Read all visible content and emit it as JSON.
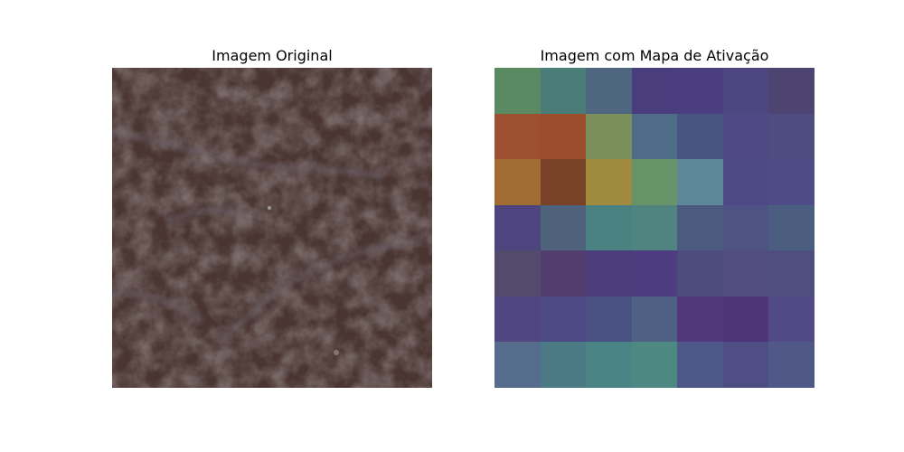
{
  "panels": {
    "left_title": "Imagem Original",
    "right_title": "Imagem com Mapa de Ativação"
  },
  "activation_map": {
    "rows": 7,
    "cols": 7,
    "cell_colors": [
      [
        "#5a8a62",
        "#4a7c78",
        "#4e6680",
        "#4a3d7e",
        "#4b3e80",
        "#4d4680",
        "#4e4472"
      ],
      [
        "#9c5030",
        "#9c4e2c",
        "#7a8f5a",
        "#4e6c88",
        "#4a5482",
        "#4e4884",
        "#4f4c82"
      ],
      [
        "#a06c32",
        "#7a4228",
        "#a08a3e",
        "#669468",
        "#5e889a",
        "#4e4a88",
        "#4e4c88"
      ],
      [
        "#4f457e",
        "#4e627c",
        "#4a8282",
        "#508480",
        "#4c5a80",
        "#4f5384",
        "#4c5e80"
      ],
      [
        "#544a6c",
        "#513e6e",
        "#4c3c7c",
        "#4e3c80",
        "#4e4c7c",
        "#534c80",
        "#4f4e80"
      ],
      [
        "#504680",
        "#4e4a86",
        "#4a5284",
        "#4e6084",
        "#50387c",
        "#4e3478",
        "#514a86"
      ],
      [
        "#566c8c",
        "#4c7a84",
        "#4a8484",
        "#4e8882",
        "#4e5888",
        "#4f4e84",
        "#505888"
      ]
    ]
  }
}
